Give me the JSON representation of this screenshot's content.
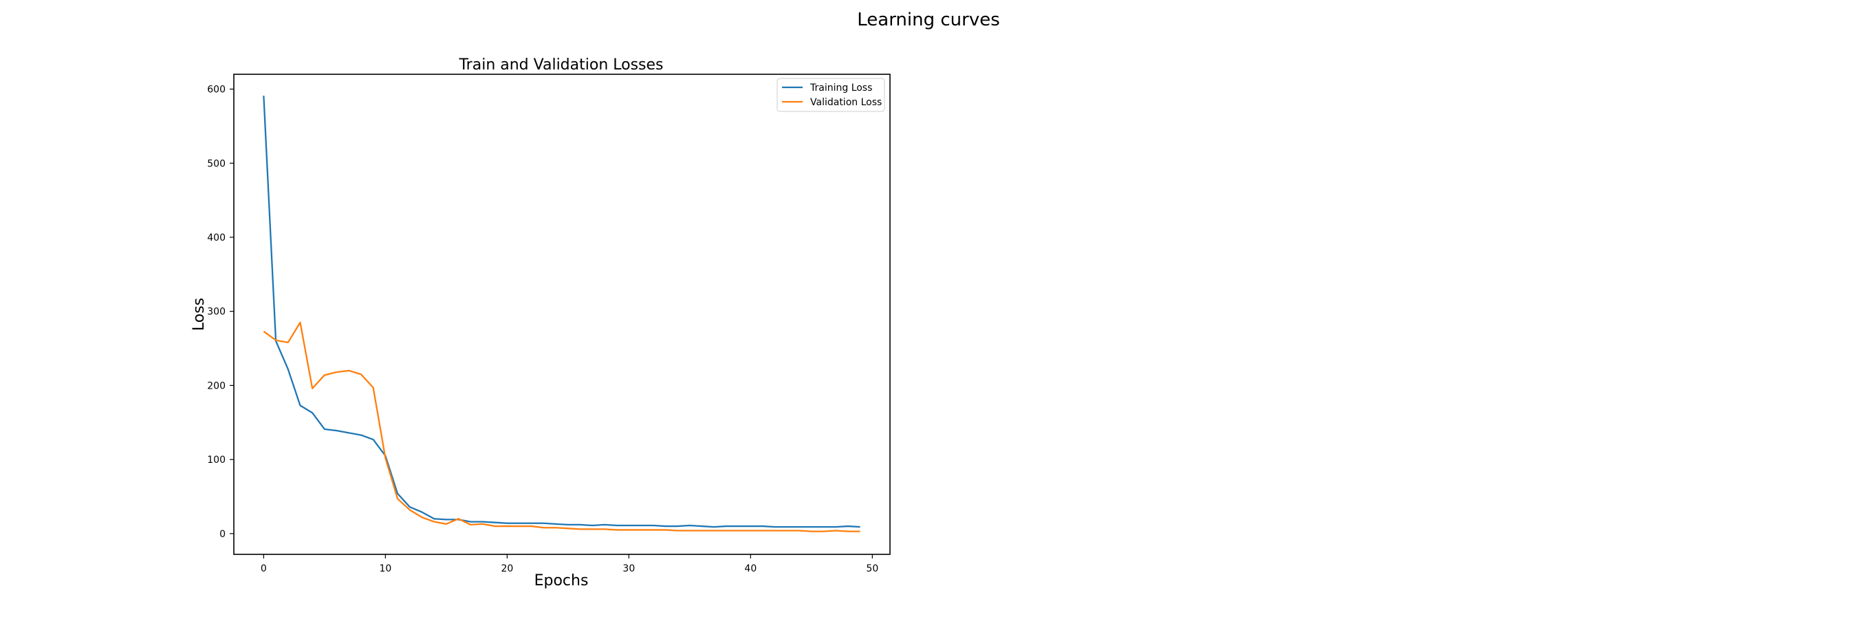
{
  "figure": {
    "suptitle": "Learning curves"
  },
  "chart_data": {
    "type": "line",
    "title": "Train and Validation Losses",
    "xlabel": "Epochs",
    "ylabel": "Loss",
    "xlim": [
      -2.45,
      51.45
    ],
    "ylim": [
      -28,
      620
    ],
    "xticks": [
      0,
      10,
      20,
      30,
      40,
      50
    ],
    "yticks": [
      0,
      100,
      200,
      300,
      400,
      500,
      600
    ],
    "grid": false,
    "legend_position": "top-right",
    "series": [
      {
        "name": "Training Loss",
        "color": "#1f77b4",
        "x": [
          0,
          1,
          2,
          3,
          4,
          5,
          6,
          7,
          8,
          9,
          10,
          11,
          12,
          13,
          14,
          15,
          16,
          17,
          18,
          19,
          20,
          21,
          22,
          23,
          24,
          25,
          26,
          27,
          28,
          29,
          30,
          31,
          32,
          33,
          34,
          35,
          36,
          37,
          38,
          39,
          40,
          41,
          42,
          43,
          44,
          45,
          46,
          47,
          48,
          49
        ],
        "values": [
          591,
          260,
          222,
          173,
          163,
          141,
          139,
          136,
          133,
          127,
          105,
          54,
          36,
          29,
          20,
          19,
          19,
          16,
          16,
          15,
          14,
          14,
          14,
          14,
          13,
          12,
          12,
          11,
          12,
          11,
          11,
          11,
          11,
          10,
          10,
          11,
          10,
          9,
          10,
          10,
          10,
          10,
          9,
          9,
          9,
          9,
          9,
          9,
          10,
          9
        ]
      },
      {
        "name": "Validation Loss",
        "color": "#ff7f0e",
        "x": [
          0,
          1,
          2,
          3,
          4,
          5,
          6,
          7,
          8,
          9,
          10,
          11,
          12,
          13,
          14,
          15,
          16,
          17,
          18,
          19,
          20,
          21,
          22,
          23,
          24,
          25,
          26,
          27,
          28,
          29,
          30,
          31,
          32,
          33,
          34,
          35,
          36,
          37,
          38,
          39,
          40,
          41,
          42,
          43,
          44,
          45,
          46,
          47,
          48,
          49
        ],
        "values": [
          273,
          261,
          258,
          285,
          196,
          214,
          218,
          220,
          215,
          197,
          102,
          47,
          32,
          22,
          16,
          13,
          20,
          12,
          13,
          10,
          10,
          10,
          10,
          8,
          8,
          7,
          6,
          6,
          6,
          5,
          5,
          5,
          5,
          5,
          4,
          4,
          4,
          4,
          4,
          4,
          4,
          4,
          4,
          4,
          4,
          3,
          3,
          4,
          3,
          3
        ]
      }
    ]
  }
}
